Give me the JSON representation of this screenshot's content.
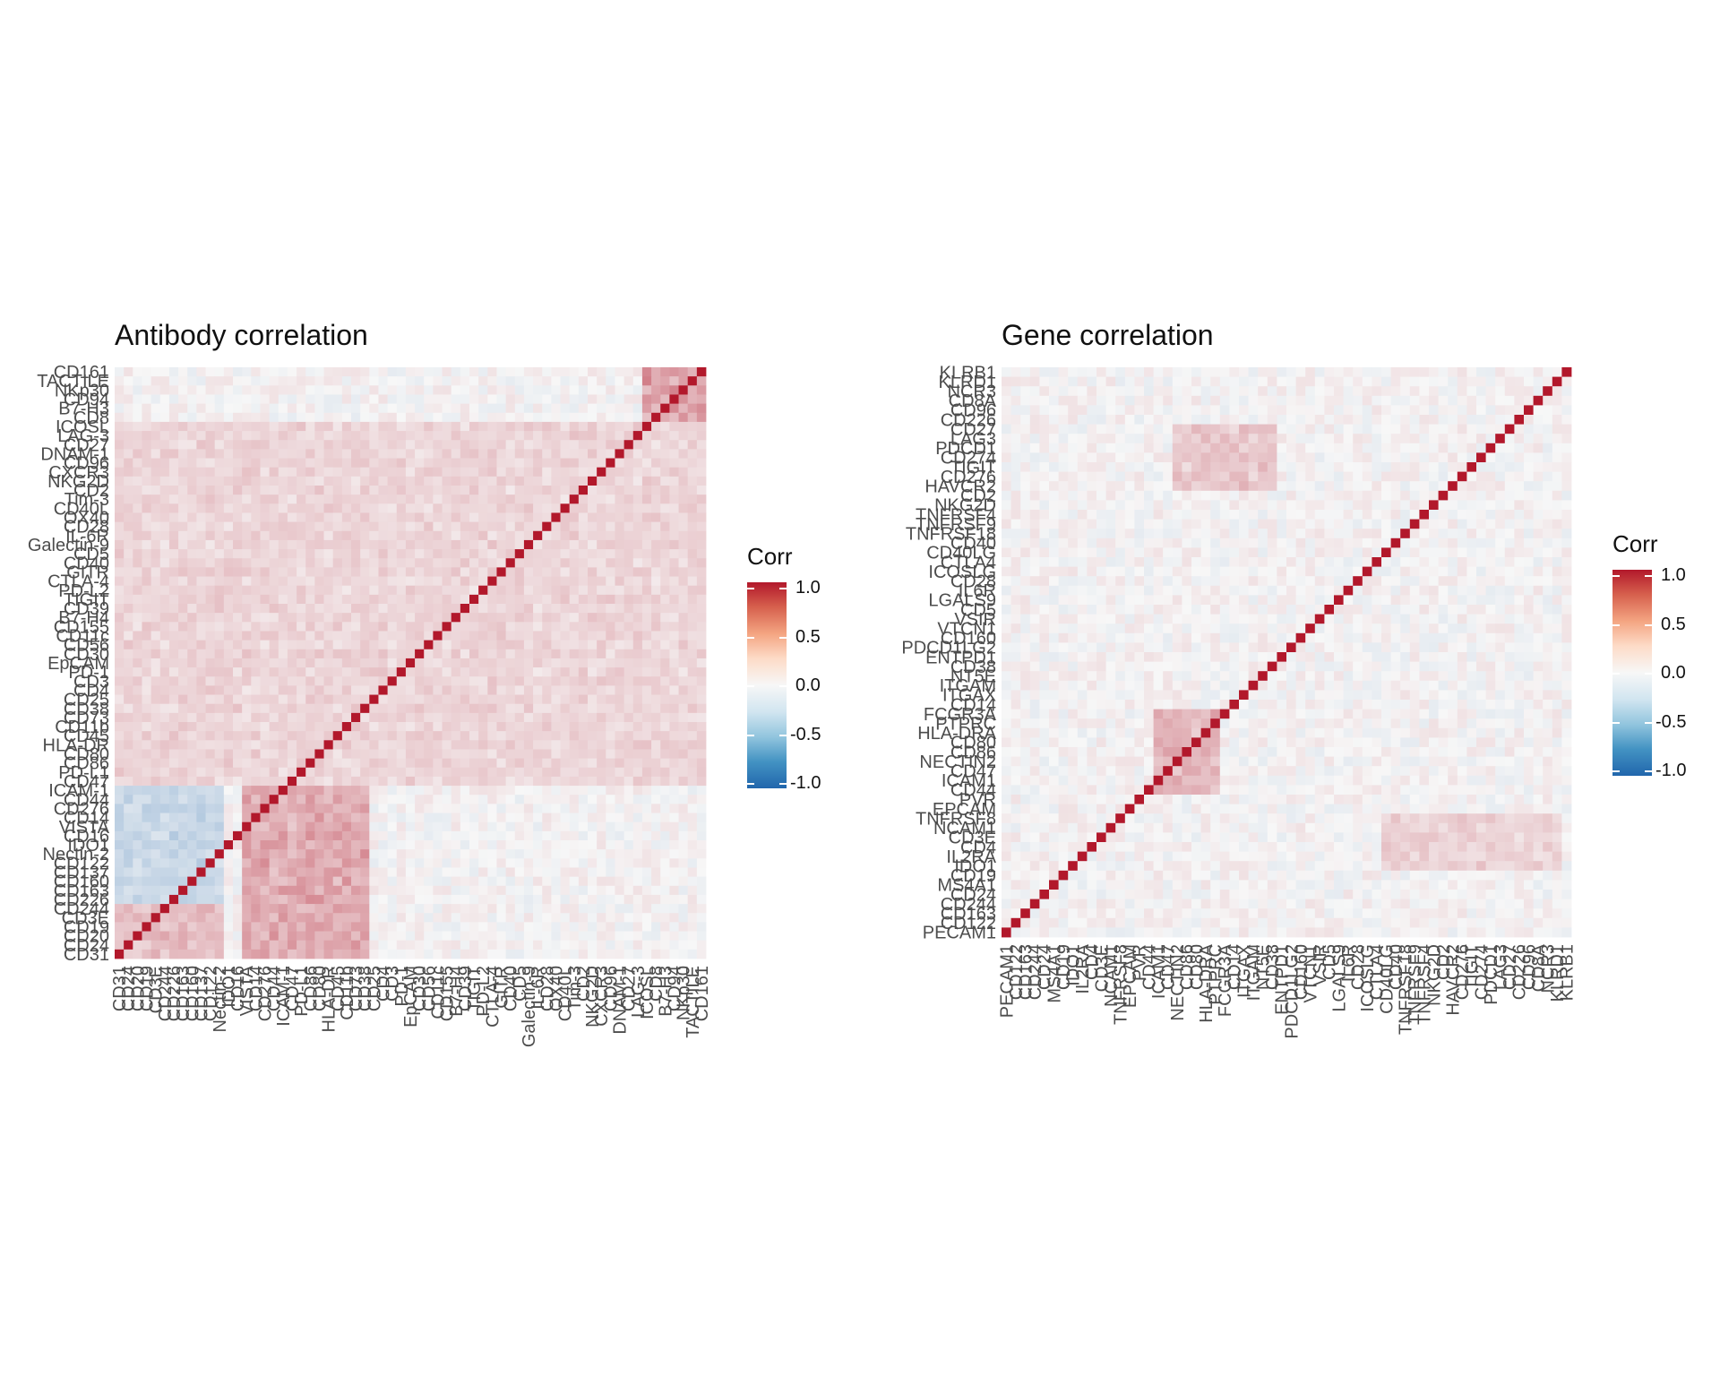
{
  "chart_data": [
    {
      "type": "heatmap",
      "title": "Antibody correlation",
      "legend_title": "Corr",
      "legend_ticks": [
        "1.0",
        "0.5",
        "0.0",
        "-0.5",
        "-1.0"
      ],
      "value_range": [
        -1,
        1
      ],
      "colorscale": [
        "#b2182b",
        "#f7f7f7",
        "#2166ac"
      ],
      "labels_y_top_to_bottom": [
        "CD161",
        "TACTILE",
        "NKp30",
        "CD94",
        "B7-H3",
        "CD8",
        "ICOSL",
        "LAG-3",
        "CD27",
        "DNAM-1",
        "CD96",
        "CXCR3",
        "NKG2D",
        "CD2",
        "Tim-3",
        "CD40L",
        "OX40",
        "CD28",
        "IL-6R",
        "Galectin-9",
        "CD5",
        "CD40",
        "GITR",
        "CTLA-4",
        "PD-L2",
        "TIGIT",
        "CD39",
        "B7-H4",
        "CD155",
        "CD11c",
        "CD56",
        "CD30",
        "EpCAM",
        "PD-1",
        "CD3",
        "CD4",
        "CD25",
        "CD38",
        "CD73",
        "CD11b",
        "CD45",
        "HLA-DR",
        "CD80",
        "CD86",
        "PD-L1",
        "CD47",
        "ICAM-1",
        "CD44",
        "CD276",
        "CD14",
        "VISTA",
        "CD16",
        "IDO1",
        "Nectin-2",
        "CD122",
        "CD137",
        "CD160",
        "CD163",
        "CD226",
        "CD244",
        "CD3E",
        "CD19",
        "CD20",
        "CD24",
        "CD31"
      ],
      "labels_x_left_to_right": [
        "CD31",
        "CD24",
        "CD20",
        "CD19",
        "CD3E",
        "CD244",
        "CD226",
        "CD163",
        "CD160",
        "CD137",
        "CD122",
        "Nectin-2",
        "IDO1",
        "CD16",
        "VISTA",
        "CD14",
        "CD276",
        "CD44",
        "ICAM-1",
        "CD47",
        "PD-L1",
        "CD86",
        "CD80",
        "HLA-DR",
        "CD45",
        "CD11b",
        "CD73",
        "CD38",
        "CD25",
        "CD4",
        "CD3",
        "PD-1",
        "EpCAM",
        "CD30",
        "CD56",
        "CD11c",
        "CD155",
        "B7-H4",
        "CD39",
        "TIGIT",
        "PD-L2",
        "CTLA-4",
        "GITR",
        "CD40",
        "CD5",
        "Galectin-9",
        "IL-6R",
        "CD28",
        "OX40",
        "CD40L",
        "Tim-3",
        "CD2",
        "NKG2D",
        "CXCR3",
        "CD96",
        "DNAM-1",
        "CD27",
        "LAG-3",
        "ICOSL",
        "CD8",
        "B7-H3",
        "CD94",
        "NKp30",
        "TACTILE",
        "CD161"
      ],
      "blocks": [
        {
          "rows": [
            0,
            5
          ],
          "cols": [
            58,
            64
          ],
          "value": 0.45
        },
        {
          "rows": [
            46,
            58
          ],
          "cols": [
            0,
            11
          ],
          "value": -0.25
        },
        {
          "rows": [
            46,
            64
          ],
          "cols": [
            14,
            27
          ],
          "value": 0.4
        },
        {
          "rows": [
            6,
            45
          ],
          "cols": [
            0,
            64
          ],
          "value": 0.18
        },
        {
          "rows": [
            59,
            64
          ],
          "cols": [
            0,
            11
          ],
          "value": 0.3
        }
      ]
    },
    {
      "type": "heatmap",
      "title": "Gene correlation",
      "legend_title": "Corr",
      "legend_ticks": [
        "1.0",
        "0.5",
        "0.0",
        "-0.5",
        "-1.0"
      ],
      "value_range": [
        -1,
        1
      ],
      "colorscale": [
        "#b2182b",
        "#f7f7f7",
        "#2166ac"
      ],
      "labels_y_top_to_bottom": [
        "KLRB1",
        "KLRD1",
        "NCR3",
        "CD8A",
        "CD96",
        "CD226",
        "CD27",
        "LAG3",
        "PDCD1",
        "CD274",
        "TIGIT",
        "CD276",
        "HAVCR2",
        "CD2",
        "NKG2D",
        "TNFRSF4",
        "TNFRSF9",
        "TNFRSF18",
        "CD40",
        "CD40LG",
        "CTLA4",
        "ICOSLG",
        "CD28",
        "IL6R",
        "LGALS9",
        "CD5",
        "VSIR",
        "VTCN1",
        "CD160",
        "PDCD1LG2",
        "ENTPD1",
        "CD38",
        "NT5E",
        "ITGAM",
        "ITGAX",
        "CD14",
        "FCGR3A",
        "PTPRC",
        "HLA-DRA",
        "CD80",
        "CD86",
        "NECTIN2",
        "CD47",
        "ICAM1",
        "CD44",
        "PVR",
        "EPCAM",
        "TNFRSF8",
        "NCAM1",
        "CD3E",
        "CD4",
        "IL2RA",
        "IDO1",
        "CD19",
        "MS4A1",
        "CD24",
        "CD244",
        "CD163",
        "CD122",
        "PECAM1"
      ],
      "labels_x_left_to_right": [
        "PECAM1",
        "CD122",
        "CD163",
        "CD244",
        "CD24",
        "MS4A1",
        "CD19",
        "IDO1",
        "IL2RA",
        "CD4",
        "CD3E",
        "NCAM1",
        "TNFRSF8",
        "EPCAM",
        "PVR",
        "CD44",
        "ICAM1",
        "CD47",
        "NECTIN2",
        "CD86",
        "CD80",
        "HLA-DRA",
        "PTPRC",
        "FCGR3A",
        "CD14",
        "ITGAX",
        "ITGAM",
        "NT5E",
        "CD38",
        "ENTPD1",
        "PDCD1LG2",
        "CD160",
        "VTCN1",
        "VSIR",
        "CD5",
        "LGALS9",
        "IL6R",
        "CD28",
        "ICOSLG",
        "CTLA4",
        "CD40LG",
        "CD40",
        "TNFRSF18",
        "TNFRSF9",
        "TNFRSF4",
        "NKG2D",
        "CD2",
        "HAVCR2",
        "CD276",
        "TIGIT",
        "CD274",
        "PDCD1",
        "LAG3",
        "CD27",
        "CD226",
        "CD96",
        "CD8A",
        "NCR3",
        "KLRD1",
        "KLRB1"
      ],
      "blocks": [
        {
          "rows": [
            36,
            44
          ],
          "cols": [
            16,
            22
          ],
          "value": 0.35
        },
        {
          "rows": [
            6,
            12
          ],
          "cols": [
            18,
            28
          ],
          "value": 0.25
        },
        {
          "rows": [
            47,
            52
          ],
          "cols": [
            40,
            58
          ],
          "value": 0.2
        }
      ]
    }
  ]
}
